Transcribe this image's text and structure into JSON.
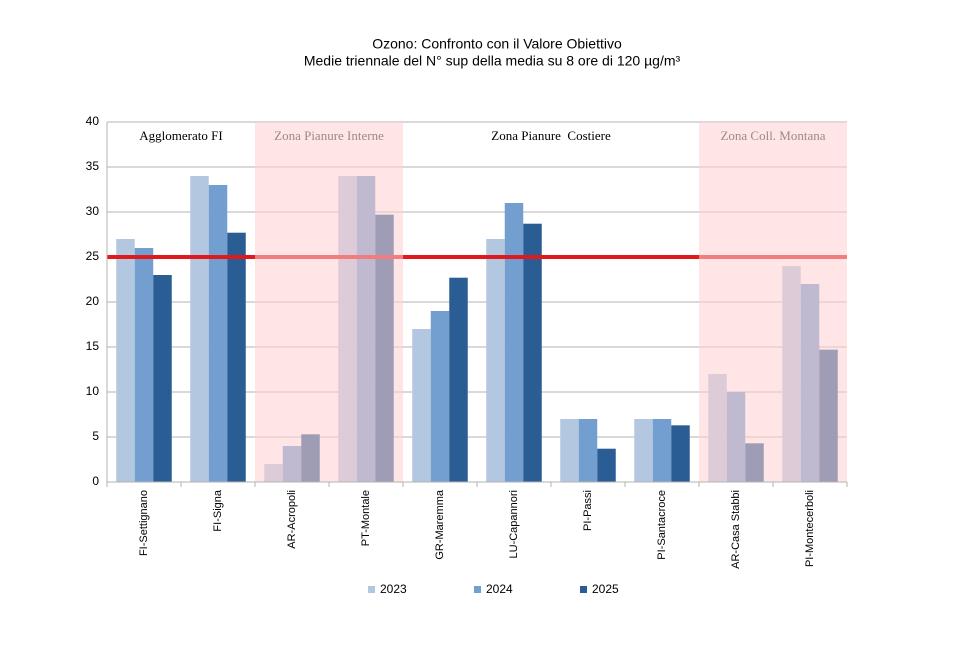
{
  "chart_data": {
    "type": "bar",
    "title": "Ozono: Confronto con il Valore Obiettivo",
    "subtitle": "Medie triennale del N° sup della media su 8 ore di 120 µg/m³",
    "categories": [
      "FI-Settignano",
      "FI-Signa",
      "AR-Acropoli",
      "PT-Montale",
      "GR-Maremma",
      "LU-Capannori",
      "PI-Passi",
      "PI-Santacroce",
      "AR-Casa Stabbi",
      "PI-Montecerboli"
    ],
    "series": [
      {
        "name": "2023",
        "color": "#b3c7e0",
        "values": [
          27,
          34,
          2,
          34,
          17,
          27,
          7,
          7,
          12,
          24
        ]
      },
      {
        "name": "2024",
        "color": "#729fcf",
        "values": [
          26,
          33,
          4,
          34,
          19,
          31,
          7,
          7,
          10,
          22
        ]
      },
      {
        "name": "2025",
        "color": "#2a5d94",
        "values": [
          23,
          27.7,
          5.3,
          29.7,
          22.7,
          28.7,
          3.7,
          6.3,
          4.3,
          14.7
        ]
      }
    ],
    "threshold": 25,
    "threshold_color": "#e0191c",
    "zones": [
      {
        "label": "Agglomerato FI",
        "count": 2,
        "shaded": false
      },
      {
        "label": "Zona Pianure Interne",
        "count": 2,
        "shaded": true
      },
      {
        "label": "Zona Pianure  Costiere",
        "count": 4,
        "shaded": false
      },
      {
        "label": "Zona Coll. Montana",
        "count": 2,
        "shaded": true
      }
    ],
    "ylim": [
      0,
      40
    ],
    "yticks": [
      0,
      5,
      10,
      15,
      20,
      25,
      30,
      35,
      40
    ],
    "grid": true,
    "legend": "bottom"
  }
}
